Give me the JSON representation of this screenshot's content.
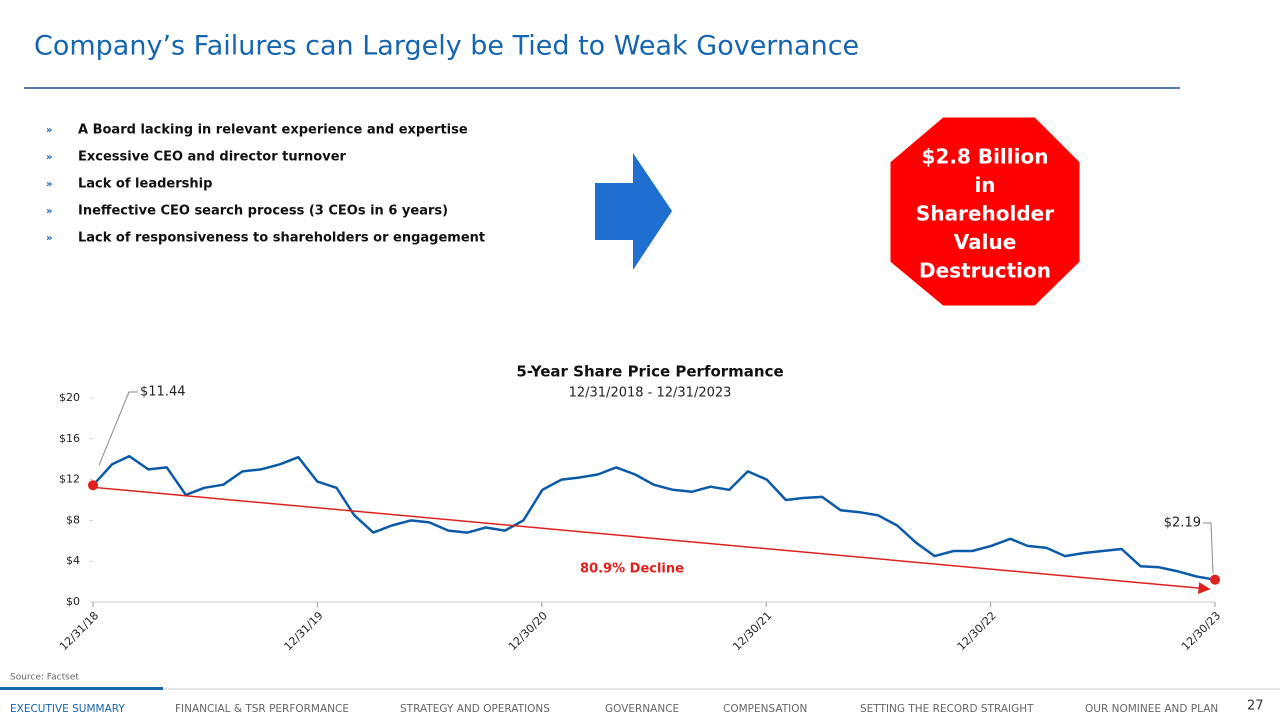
{
  "header": {
    "title": "Company’s Failures can Largely be Tied to Weak Governance"
  },
  "bullets": [
    "A Board lacking in relevant experience and expertise",
    "Excessive CEO and director turnover",
    "Lack of leadership",
    "Ineffective CEO search process (3 CEOs in 6 years)",
    "Lack of responsiveness to shareholders or engagement"
  ],
  "callout": [
    "$2.8 Billion",
    "in",
    "Shareholder",
    "Value",
    "Destruction"
  ],
  "chart_data": {
    "type": "line",
    "title": "5-Year Share Price Performance",
    "subtitle": "12/31/2018 - 12/31/2023",
    "x": [
      "2018-12-31",
      "2019-01-31",
      "2019-02-28",
      "2019-03-31",
      "2019-04-30",
      "2019-05-31",
      "2019-06-30",
      "2019-07-31",
      "2019-08-31",
      "2019-09-30",
      "2019-10-31",
      "2019-11-30",
      "2019-12-31",
      "2020-01-31",
      "2020-02-29",
      "2020-03-31",
      "2020-04-30",
      "2020-05-31",
      "2020-06-30",
      "2020-07-31",
      "2020-08-31",
      "2020-09-30",
      "2020-10-31",
      "2020-11-30",
      "2020-12-31",
      "2021-01-31",
      "2021-02-28",
      "2021-03-31",
      "2021-04-30",
      "2021-05-31",
      "2021-06-30",
      "2021-07-31",
      "2021-08-31",
      "2021-09-30",
      "2021-10-31",
      "2021-11-30",
      "2021-12-31",
      "2022-01-31",
      "2022-02-28",
      "2022-03-31",
      "2022-04-30",
      "2022-05-31",
      "2022-06-30",
      "2022-07-31",
      "2022-08-31",
      "2022-09-30",
      "2022-10-31",
      "2022-11-30",
      "2022-12-31",
      "2023-01-31",
      "2023-02-28",
      "2023-03-31",
      "2023-04-30",
      "2023-05-31",
      "2023-06-30",
      "2023-07-31",
      "2023-08-31",
      "2023-09-30",
      "2023-10-31",
      "2023-11-30",
      "2023-12-30"
    ],
    "series": [
      {
        "name": "Share Price",
        "color": "#0b5aa8",
        "values": [
          11.44,
          13.5,
          14.3,
          13,
          13.2,
          10.5,
          11.2,
          11.5,
          12.8,
          13,
          13.5,
          14.2,
          11.8,
          11.2,
          8.5,
          6.8,
          7.5,
          8,
          7.8,
          7,
          6.8,
          7.3,
          7,
          8,
          11,
          12,
          12.2,
          12.5,
          13.2,
          12.5,
          11.5,
          11,
          10.8,
          11.3,
          11,
          12.8,
          12,
          10,
          10.2,
          10.3,
          9,
          8.8,
          8.5,
          7.5,
          5.8,
          4.5,
          5,
          5,
          5.5,
          6.2,
          5.5,
          5.3,
          4.5,
          4.8,
          5,
          5.2,
          3.5,
          3.4,
          3,
          2.5,
          2.19
        ]
      }
    ],
    "ylim": [
      0,
      20
    ],
    "yticks": [
      {
        "value": 0,
        "label": "$0"
      },
      {
        "value": 4,
        "label": "$4"
      },
      {
        "value": 8,
        "label": "$8"
      },
      {
        "value": 12,
        "label": "$12"
      },
      {
        "value": 16,
        "label": "$16"
      },
      {
        "value": 20,
        "label": "$20"
      }
    ],
    "xlim": [
      "2018-12-31",
      "2023-12-30"
    ],
    "xticks": [
      {
        "value": "2018-12-31",
        "label": "12/31/18"
      },
      {
        "value": "2019-12-31",
        "label": "12/31/19"
      },
      {
        "value": "2020-12-30",
        "label": "12/30/20"
      },
      {
        "value": "2021-12-30",
        "label": "12/30/21"
      },
      {
        "value": "2022-12-30",
        "label": "12/30/22"
      },
      {
        "value": "2023-12-30",
        "label": "12/30/23"
      }
    ],
    "annotations": [
      "$11.44",
      "$2.19",
      "80.9% Decline"
    ]
  },
  "source": "Source: Factset",
  "nav": [
    "EXECUTIVE SUMMARY",
    "FINANCIAL & TSR PERFORMANCE",
    "STRATEGY AND OPERATIONS",
    "GOVERNANCE",
    "COMPENSATION",
    "SETTING THE RECORD STRAIGHT",
    "OUR NOMINEE AND PLAN"
  ],
  "page_number": "27"
}
